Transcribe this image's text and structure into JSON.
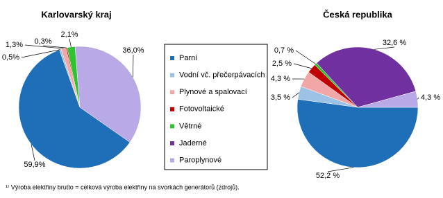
{
  "chart_data": [
    {
      "type": "pie",
      "title": "Karlovarský kraj",
      "categories": [
        "Parní",
        "Vodní vč. přečerpávacích",
        "Plynové a spalovací",
        "Fotovoltaické",
        "Větrné",
        "Jaderné",
        "Paroplynové"
      ],
      "values": [
        59.9,
        0.5,
        1.3,
        0.3,
        2.1,
        0,
        36.0
      ],
      "value_labels": [
        "59,9%",
        "0,5%",
        "1,3%",
        "0,3%",
        "2,1%",
        null,
        "36,0%"
      ],
      "colors": [
        "#1f6fb8",
        "#9cc3e5",
        "#f2a7a7",
        "#c00000",
        "#2fc42f",
        "#7030a0",
        "#b9a9e6"
      ]
    },
    {
      "type": "pie",
      "title": "Česká republika",
      "categories": [
        "Parní",
        "Vodní vč. přečerpávacích",
        "Plynové a spalovací",
        "Fotovoltaické",
        "Větrné",
        "Jaderné",
        "Paroplynové"
      ],
      "values": [
        52.2,
        3.5,
        4.3,
        2.5,
        0.7,
        32.6,
        4.3
      ],
      "value_labels": [
        "52,2 %",
        "3,5 %",
        "4,3 %",
        "2,5 %",
        "0,7 %",
        "32,6 %",
        "4,3 %"
      ],
      "colors": [
        "#1f6fb8",
        "#9cc3e5",
        "#f2a7a7",
        "#c00000",
        "#2fc42f",
        "#7030a0",
        "#b9a9e6"
      ]
    }
  ],
  "footnote": "¹⁾ Výroba elektřiny brutto = celková výroba elektřiny na svorkách generátorů (zdrojů)."
}
